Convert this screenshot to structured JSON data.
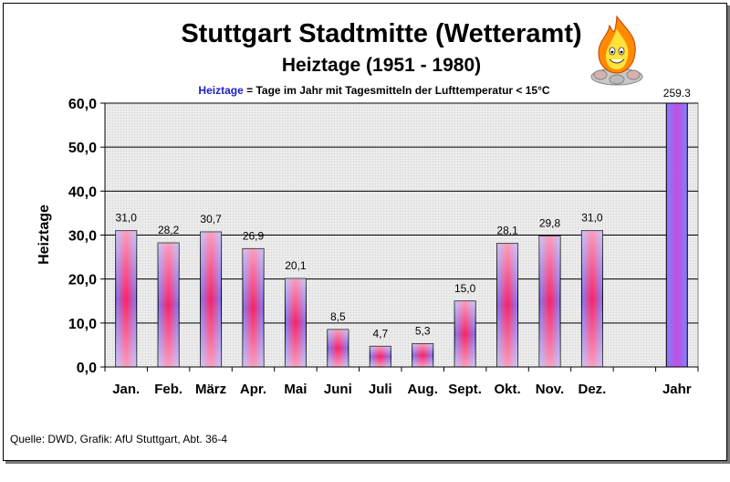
{
  "chart_data": {
    "type": "bar",
    "title": "Stuttgart Stadtmitte (Wetteramt)",
    "subtitle": "Heiztage (1951 - 1980)",
    "legend_term": "Heiztage",
    "legend_definition": " = Tage im Jahr mit Tagesmitteln der Lufttemperatur < 15°C",
    "ylabel": "Heiztage",
    "xlabel": "",
    "ylim": [
      0,
      60
    ],
    "yticks": [
      "0,0",
      "10,0",
      "20,0",
      "30,0",
      "40,0",
      "50,0",
      "60,0"
    ],
    "categories": [
      "Jan.",
      "Feb.",
      "März",
      "Apr.",
      "Mai",
      "Juni",
      "Juli",
      "Aug.",
      "Sept.",
      "Okt.",
      "Nov.",
      "Dez.",
      "",
      "Jahr"
    ],
    "values": [
      31.0,
      28.2,
      30.7,
      26.9,
      20.1,
      8.5,
      4.7,
      5.3,
      15.0,
      28.1,
      29.8,
      31.0,
      null,
      259.3
    ],
    "data_labels": [
      "31,0",
      "28,2",
      "30,7",
      "26,9",
      "20,1",
      "8,5",
      "4,7",
      "5,3",
      "15,0",
      "28,1",
      "29,8",
      "31,0",
      "",
      "259.3"
    ],
    "grid": true,
    "source": "Quelle: DWD, Grafik: AfU Stuttgart, Abt. 36-4",
    "colors": {
      "bar_edge": "#8080ff",
      "bar_center": "#ff0040",
      "plot_bg": "#e6e6e6",
      "legend_term": "#2020c0"
    }
  }
}
